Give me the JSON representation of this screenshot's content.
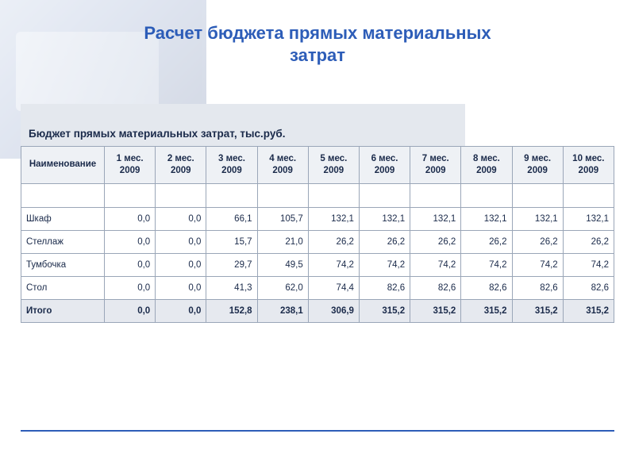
{
  "title_line1": "Расчет бюджета прямых материальных",
  "title_line2": "затрат",
  "subtitle": "Бюджет прямых материальных затрат, тыс.руб.",
  "colors": {
    "title": "#2d5db8",
    "subtitle_bg": "#e4e8ee",
    "header_bg": "#eef1f5",
    "total_bg": "#e6e9ef",
    "border": "#9aa6b8",
    "text": "#1a2a4a",
    "footer_rule": "#2d5db8",
    "page_bg": "#ffffff"
  },
  "typography": {
    "title_fontsize": 22,
    "subtitle_fontsize": 13.5,
    "cell_fontsize": 11.5,
    "font_family": "Arial"
  },
  "table": {
    "type": "table",
    "name_header": "Наименование",
    "columns": [
      "1 мес. 2009",
      "2 мес. 2009",
      "3 мес. 2009",
      "4 мес. 2009",
      "5 мес. 2009",
      "6 мес. 2009",
      "7 мес. 2009",
      "8 мес. 2009",
      "9 мес. 2009",
      "10 мес. 2009"
    ],
    "rows": [
      {
        "label": "Шкаф",
        "values": [
          "0,0",
          "0,0",
          "66,1",
          "105,7",
          "132,1",
          "132,1",
          "132,1",
          "132,1",
          "132,1",
          "132,1"
        ]
      },
      {
        "label": "Стеллаж",
        "values": [
          "0,0",
          "0,0",
          "15,7",
          "21,0",
          "26,2",
          "26,2",
          "26,2",
          "26,2",
          "26,2",
          "26,2"
        ]
      },
      {
        "label": "Тумбочка",
        "values": [
          "0,0",
          "0,0",
          "29,7",
          "49,5",
          "74,2",
          "74,2",
          "74,2",
          "74,2",
          "74,2",
          "74,2"
        ]
      },
      {
        "label": "Стол",
        "values": [
          "0,0",
          "0,0",
          "41,3",
          "62,0",
          "74,4",
          "82,6",
          "82,6",
          "82,6",
          "82,6",
          "82,6"
        ]
      }
    ],
    "total": {
      "label": "Итого",
      "values": [
        "0,0",
        "0,0",
        "152,8",
        "238,1",
        "306,9",
        "315,2",
        "315,2",
        "315,2",
        "315,2",
        "315,2"
      ]
    },
    "column_alignment": {
      "name": "left",
      "values": "right"
    }
  }
}
